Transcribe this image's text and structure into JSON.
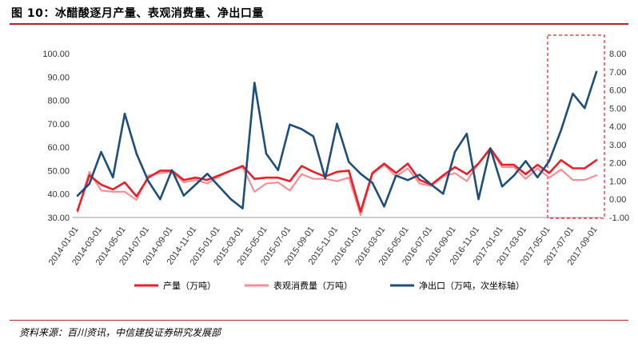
{
  "header": {
    "title": "图 10：冰醋酸逐月产量、表观消费量、净出口量"
  },
  "footer": {
    "source": "资料来源：百川资讯，中信建投证券研究发展部"
  },
  "colors": {
    "production": "#e8202a",
    "consumption": "#f58f97",
    "net_export": "#1f4e79",
    "highlight": "#e8202a",
    "rule": "#b1262c"
  },
  "chart_data": {
    "type": "line",
    "x": [
      "2014-01-01",
      "2014-02-01",
      "2014-03-01",
      "2014-04-01",
      "2014-05-01",
      "2014-06-01",
      "2014-07-01",
      "2014-08-01",
      "2014-09-01",
      "2014-10-01",
      "2014-11-01",
      "2014-12-01",
      "2015-01-01",
      "2015-02-01",
      "2015-03-01",
      "2015-04-01",
      "2015-05-01",
      "2015-06-01",
      "2015-07-01",
      "2015-08-01",
      "2015-09-01",
      "2015-10-01",
      "2015-11-01",
      "2015-12-01",
      "2016-01-01",
      "2016-02-01",
      "2016-03-01",
      "2016-04-01",
      "2016-05-01",
      "2016-06-01",
      "2016-07-01",
      "2016-08-01",
      "2016-09-01",
      "2016-10-01",
      "2016-11-01",
      "2016-12-01",
      "2017-01-01",
      "2017-02-01",
      "2017-03-01",
      "2017-04-01",
      "2017-05-01",
      "2017-06-01",
      "2017-07-01",
      "2017-08-01",
      "2017-09-01"
    ],
    "x_tick_labels": [
      "2014-01-01",
      "2014-03-01",
      "2014-05-01",
      "2014-07-01",
      "2014-09-01",
      "2014-11-01",
      "2015-01-01",
      "2015-03-01",
      "2015-05-01",
      "2015-07-01",
      "2015-09-01",
      "2015-11-01",
      "2016-01-01",
      "2016-03-01",
      "2016-05-01",
      "2016-07-01",
      "2016-09-01",
      "2016-11-01",
      "2017-01-01",
      "2017-03-01",
      "2017-05-01",
      "2017-07-01",
      "2017-09-01"
    ],
    "y_left": {
      "range": [
        30,
        100
      ],
      "ticks": [
        "30.00",
        "40.00",
        "50.00",
        "60.00",
        "70.00",
        "80.00",
        "90.00",
        "100.00"
      ]
    },
    "y_right": {
      "range": [
        -1,
        8
      ],
      "ticks": [
        "-1.00",
        "0.00",
        "1.00",
        "2.00",
        "3.00",
        "4.00",
        "5.00",
        "6.00",
        "7.00",
        "8.00"
      ]
    },
    "series": [
      {
        "name": "产量（万吨）",
        "axis": "left",
        "values": [
          33,
          48,
          44,
          42,
          45,
          39,
          47,
          50,
          50,
          46,
          47,
          46,
          48,
          50,
          52,
          46.5,
          47,
          47,
          45.5,
          52,
          49.5,
          47.5,
          49.5,
          50,
          32.5,
          49,
          53,
          49,
          53,
          46,
          44,
          48,
          51.5,
          48.5,
          53,
          59.5,
          52.5,
          52.5,
          48.5,
          52.5,
          49,
          54.5,
          51,
          51,
          54.5
        ]
      },
      {
        "name": "表观消费量（万吨）",
        "axis": "left",
        "values": [
          32.5,
          49.5,
          41.5,
          41,
          41,
          37.5,
          48,
          49,
          49.5,
          45,
          46,
          44.5,
          47.5,
          50,
          51.5,
          41,
          44.5,
          45,
          41.5,
          48.5,
          46.5,
          46.5,
          45.5,
          47,
          31,
          48.5,
          52.5,
          47.5,
          51,
          44.5,
          43.5,
          47.5,
          49,
          45.5,
          53,
          59,
          51.5,
          51.5,
          46.5,
          51,
          47,
          50.5,
          46,
          46,
          48
        ]
      },
      {
        "name": "净出口（万吨，次坐标轴）",
        "axis": "right",
        "values": [
          0.2,
          0.85,
          2.6,
          1.2,
          4.7,
          2.5,
          1,
          0,
          1.6,
          0.2,
          0.8,
          1.4,
          0.7,
          0,
          -0.5,
          6.4,
          2.5,
          1.6,
          4.1,
          3.85,
          3.45,
          1.15,
          4.15,
          2.05,
          1.4,
          0.9,
          -0.4,
          1.3,
          1.05,
          1.35,
          0.8,
          0.3,
          2.6,
          3.6,
          0,
          2.8,
          0.7,
          1.3,
          2.1,
          1.2,
          2.1,
          3.8,
          5.8,
          5,
          7
        ]
      }
    ],
    "legend_position": "bottom",
    "highlight_region": {
      "start": "2017-05-01",
      "end": "2017-09-01",
      "style": "red dashed box"
    },
    "grid": false
  }
}
